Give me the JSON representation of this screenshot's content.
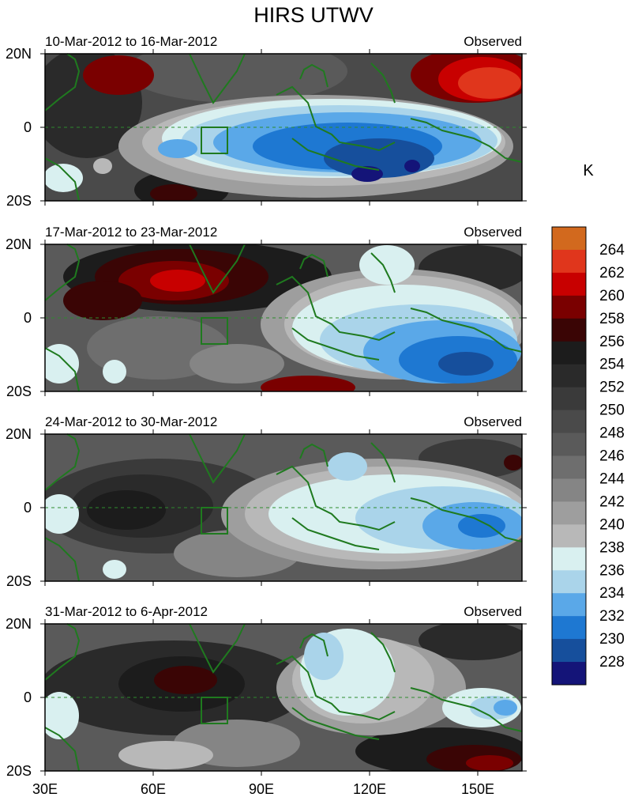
{
  "figure": {
    "title": "HIRS UTWV",
    "units": "K"
  },
  "chart_data": {
    "type": "heatmap",
    "title": "HIRS UTWV",
    "units": "K",
    "x_ticks": [
      "30E",
      "60E",
      "90E",
      "120E",
      "150E"
    ],
    "y_ticks": [
      "20N",
      "0",
      "20S"
    ],
    "xlim": [
      30,
      162
    ],
    "ylim": [
      -20,
      20
    ],
    "panels": [
      {
        "period": "10-Mar-2012 to 16-Mar-2012",
        "label": "Observed"
      },
      {
        "period": "17-Mar-2012 to 23-Mar-2012",
        "label": "Observed"
      },
      {
        "period": "24-Mar-2012 to 30-Mar-2012",
        "label": "Observed"
      },
      {
        "period": "31-Mar-2012 to 6-Apr-2012",
        "label": "Observed"
      }
    ],
    "colorbar": {
      "levels": [
        "264",
        "262",
        "260",
        "258",
        "256",
        "254",
        "252",
        "250",
        "248",
        "246",
        "244",
        "242",
        "240",
        "238",
        "236",
        "234",
        "232",
        "230",
        "228"
      ],
      "colors": [
        "#d2691e",
        "#e0361c",
        "#c80000",
        "#7a0000",
        "#3a0505",
        "#1c1c1c",
        "#2a2a2a",
        "#3a3a3a",
        "#4a4a4a",
        "#5a5a5a",
        "#6e6e6e",
        "#858585",
        "#9e9e9e",
        "#b8b8b8",
        "#d9f0f0",
        "#aad4ea",
        "#5aa8e8",
        "#1e78d2",
        "#164f9c",
        "#141478"
      ]
    },
    "box": {
      "lon": [
        73,
        80
      ],
      "lat": [
        -7,
        0
      ]
    }
  }
}
